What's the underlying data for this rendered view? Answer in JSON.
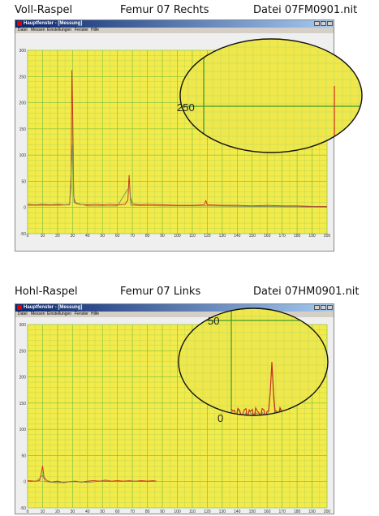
{
  "panels": [
    {
      "caption": {
        "method": "Voll-Raspel",
        "femur": "Femur 07 Rechts",
        "file": "Datei  07FM0901.nit"
      },
      "window": {
        "title": "Hauptfenster - [Messung]",
        "menu": [
          "Datei",
          "Messen",
          "Einstellungen",
          "Fenster",
          "Hilfe"
        ]
      },
      "icons": [
        "app-icon",
        "minimize-icon",
        "maximize-icon",
        "close-icon"
      ],
      "magnifier_label": "250",
      "chart_data": {
        "type": "line",
        "xlim": [
          0,
          200
        ],
        "ylim": [
          -50,
          300
        ],
        "x_ticks": [
          "0",
          "10",
          "20",
          "30",
          "40",
          "50",
          "60",
          "70",
          "80",
          "90",
          "100",
          "110",
          "120",
          "130",
          "140",
          "150",
          "160",
          "170",
          "180",
          "190",
          "200"
        ],
        "y_ticks": [
          "-50",
          "0",
          "50",
          "100",
          "150",
          "200",
          "250",
          "300"
        ],
        "grid": true,
        "series": [
          {
            "color": "#cc2a1a",
            "values": [
              [
                0,
                6
              ],
              [
                5,
                5
              ],
              [
                10,
                6
              ],
              [
                15,
                5
              ],
              [
                20,
                6
              ],
              [
                25,
                5
              ],
              [
                28,
                6
              ],
              [
                29,
                40
              ],
              [
                29.6,
                262
              ],
              [
                30.2,
                170
              ],
              [
                30.8,
                20
              ],
              [
                32,
                8
              ],
              [
                35,
                6
              ],
              [
                40,
                5
              ],
              [
                45,
                6
              ],
              [
                50,
                5
              ],
              [
                55,
                6
              ],
              [
                60,
                5
              ],
              [
                65,
                6
              ],
              [
                67,
                14
              ],
              [
                67.8,
                62
              ],
              [
                68.6,
                20
              ],
              [
                70,
                7
              ],
              [
                75,
                5
              ],
              [
                80,
                6
              ],
              [
                90,
                5
              ],
              [
                100,
                4
              ],
              [
                110,
                4
              ],
              [
                118,
                5
              ],
              [
                119,
                13
              ],
              [
                120,
                5
              ],
              [
                130,
                4
              ],
              [
                140,
                4
              ],
              [
                150,
                3
              ],
              [
                160,
                4
              ],
              [
                170,
                3
              ],
              [
                180,
                3
              ],
              [
                190,
                2
              ],
              [
                200,
                2
              ]
            ]
          },
          {
            "color": "#7a8a5a",
            "values": [
              [
                0,
                4
              ],
              [
                10,
                4
              ],
              [
                20,
                4
              ],
              [
                28,
                5
              ],
              [
                30,
                120
              ],
              [
                31,
                10
              ],
              [
                40,
                3
              ],
              [
                60,
                3
              ],
              [
                68,
                40
              ],
              [
                69,
                4
              ],
              [
                90,
                3
              ],
              [
                120,
                3
              ],
              [
                150,
                2
              ],
              [
                200,
                1
              ]
            ]
          }
        ]
      }
    },
    {
      "caption": {
        "method": "Hohl-Raspel",
        "femur": "Femur 07 Links",
        "file": "Datei  07HM0901.nit"
      },
      "window": {
        "title": "Hauptfenster - [Messung]",
        "menu": [
          "Datei",
          "Messen",
          "Einstellungen",
          "Fenster",
          "Hilfe"
        ]
      },
      "icons": [
        "app-icon",
        "minimize-icon",
        "maximize-icon",
        "close-icon"
      ],
      "magnifier_labels": [
        "50",
        "0"
      ],
      "chart_data": {
        "type": "line",
        "xlim": [
          0,
          200
        ],
        "ylim": [
          -50,
          300
        ],
        "x_ticks": [
          "0",
          "10",
          "20",
          "30",
          "40",
          "50",
          "60",
          "70",
          "80",
          "90",
          "100",
          "110",
          "120",
          "130",
          "140",
          "150",
          "160",
          "170",
          "180",
          "190",
          "200"
        ],
        "y_ticks": [
          "-50",
          "0",
          "50",
          "100",
          "150",
          "200",
          "250",
          "300"
        ],
        "grid": true,
        "series": [
          {
            "color": "#cc2a1a",
            "values": [
              [
                0,
                2
              ],
              [
                5,
                1
              ],
              [
                8,
                2
              ],
              [
                9,
                14
              ],
              [
                10,
                30
              ],
              [
                11,
                8
              ],
              [
                13,
                2
              ],
              [
                16,
                -1
              ],
              [
                20,
                1
              ],
              [
                24,
                -2
              ],
              [
                28,
                0
              ],
              [
                32,
                1
              ],
              [
                36,
                -1
              ],
              [
                40,
                1
              ],
              [
                44,
                2
              ],
              [
                48,
                1
              ],
              [
                52,
                3
              ],
              [
                56,
                1
              ],
              [
                60,
                2
              ],
              [
                64,
                1
              ],
              [
                68,
                2
              ],
              [
                72,
                1
              ],
              [
                76,
                2
              ],
              [
                80,
                1
              ],
              [
                84,
                2
              ],
              [
                86,
                1
              ]
            ]
          },
          {
            "color": "#7a8a5a",
            "values": [
              [
                0,
                0
              ],
              [
                6,
                1
              ],
              [
                10,
                12
              ],
              [
                12,
                0
              ],
              [
                20,
                -2
              ],
              [
                30,
                0
              ],
              [
                40,
                -1
              ],
              [
                50,
                1
              ],
              [
                60,
                0
              ],
              [
                70,
                1
              ],
              [
                80,
                0
              ],
              [
                86,
                1
              ]
            ]
          }
        ]
      }
    }
  ]
}
